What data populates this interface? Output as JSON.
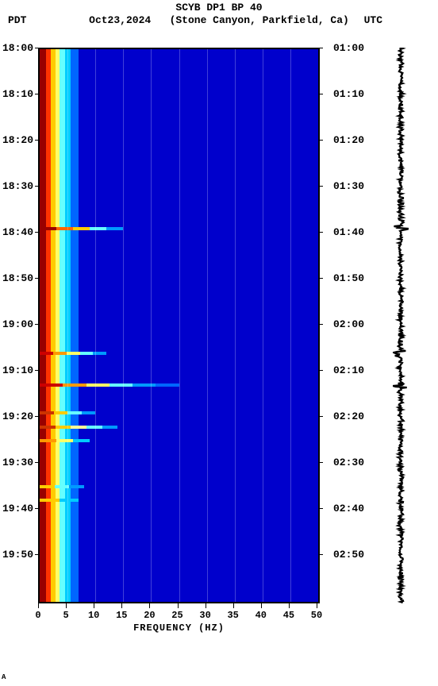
{
  "header": {
    "title_line1": "SCYB DP1 BP 40",
    "date": "Oct23,2024",
    "location": "(Stone Canyon, Parkfield, Ca)",
    "left_tz": "PDT",
    "right_tz": "UTC"
  },
  "axes": {
    "x_label": "FREQUENCY (HZ)",
    "x_min": 0,
    "x_max": 50,
    "x_ticks": [
      0,
      5,
      10,
      15,
      20,
      25,
      30,
      35,
      40,
      45,
      50
    ],
    "y_ticks_left": [
      "18:00",
      "18:10",
      "18:20",
      "18:30",
      "18:40",
      "18:50",
      "19:00",
      "19:10",
      "19:20",
      "19:30",
      "19:40",
      "19:50"
    ],
    "y_ticks_right": [
      "01:00",
      "01:10",
      "01:20",
      "01:30",
      "01:40",
      "01:50",
      "02:00",
      "02:10",
      "02:20",
      "02:30",
      "02:40",
      "02:50"
    ],
    "y_min_minutes": 0,
    "y_max_minutes": 120,
    "label_fontsize": 12
  },
  "spectrogram": {
    "type": "heatmap",
    "background_color": "#0000cc",
    "bands": [
      {
        "freq_from": 0.0,
        "freq_to": 1.2,
        "color": "#990000"
      },
      {
        "freq_from": 1.2,
        "freq_to": 2.0,
        "color": "#ff3300"
      },
      {
        "freq_from": 2.0,
        "freq_to": 2.8,
        "color": "#ffcc00"
      },
      {
        "freq_from": 2.8,
        "freq_to": 3.6,
        "color": "#ffff66"
      },
      {
        "freq_from": 3.6,
        "freq_to": 4.5,
        "color": "#66ffff"
      },
      {
        "freq_from": 4.5,
        "freq_to": 5.5,
        "color": "#00ccff"
      },
      {
        "freq_from": 5.5,
        "freq_to": 7.0,
        "color": "#0066ff"
      }
    ],
    "events": [
      {
        "minute": 39,
        "freq_to": 15,
        "colors": [
          "#990000",
          "#ff6600",
          "#ffcc00",
          "#66ffff",
          "#0099ff"
        ]
      },
      {
        "minute": 66,
        "freq_to": 12,
        "colors": [
          "#cc0000",
          "#ff9900",
          "#ffff66",
          "#66ffff",
          "#0099ff"
        ]
      },
      {
        "minute": 73,
        "freq_to": 25,
        "colors": [
          "#cc0000",
          "#ff9900",
          "#ffff66",
          "#66ffff",
          "#0099ff",
          "#0066ff"
        ]
      },
      {
        "minute": 79,
        "freq_to": 10,
        "colors": [
          "#cc3300",
          "#ffcc00",
          "#66ffff",
          "#0099ff"
        ]
      },
      {
        "minute": 82,
        "freq_to": 14,
        "colors": [
          "#cc3300",
          "#ffcc00",
          "#ffff99",
          "#66ffff",
          "#0099ff"
        ]
      },
      {
        "minute": 85,
        "freq_to": 9,
        "colors": [
          "#ff9900",
          "#ffff66",
          "#00ccff"
        ]
      },
      {
        "minute": 95,
        "freq_to": 8,
        "colors": [
          "#ffcc00",
          "#66ffff",
          "#0099ff"
        ]
      },
      {
        "minute": 98,
        "freq_to": 7,
        "colors": [
          "#ffcc00",
          "#00ccff"
        ]
      }
    ],
    "grid_color": "rgba(255,255,255,0.25)"
  },
  "waveform": {
    "color": "#000000",
    "base_amp": 4,
    "spikes": [
      {
        "minute": 39,
        "amp": 12
      },
      {
        "minute": 66,
        "amp": 9
      },
      {
        "minute": 73,
        "amp": 10
      }
    ]
  },
  "credit": "A"
}
